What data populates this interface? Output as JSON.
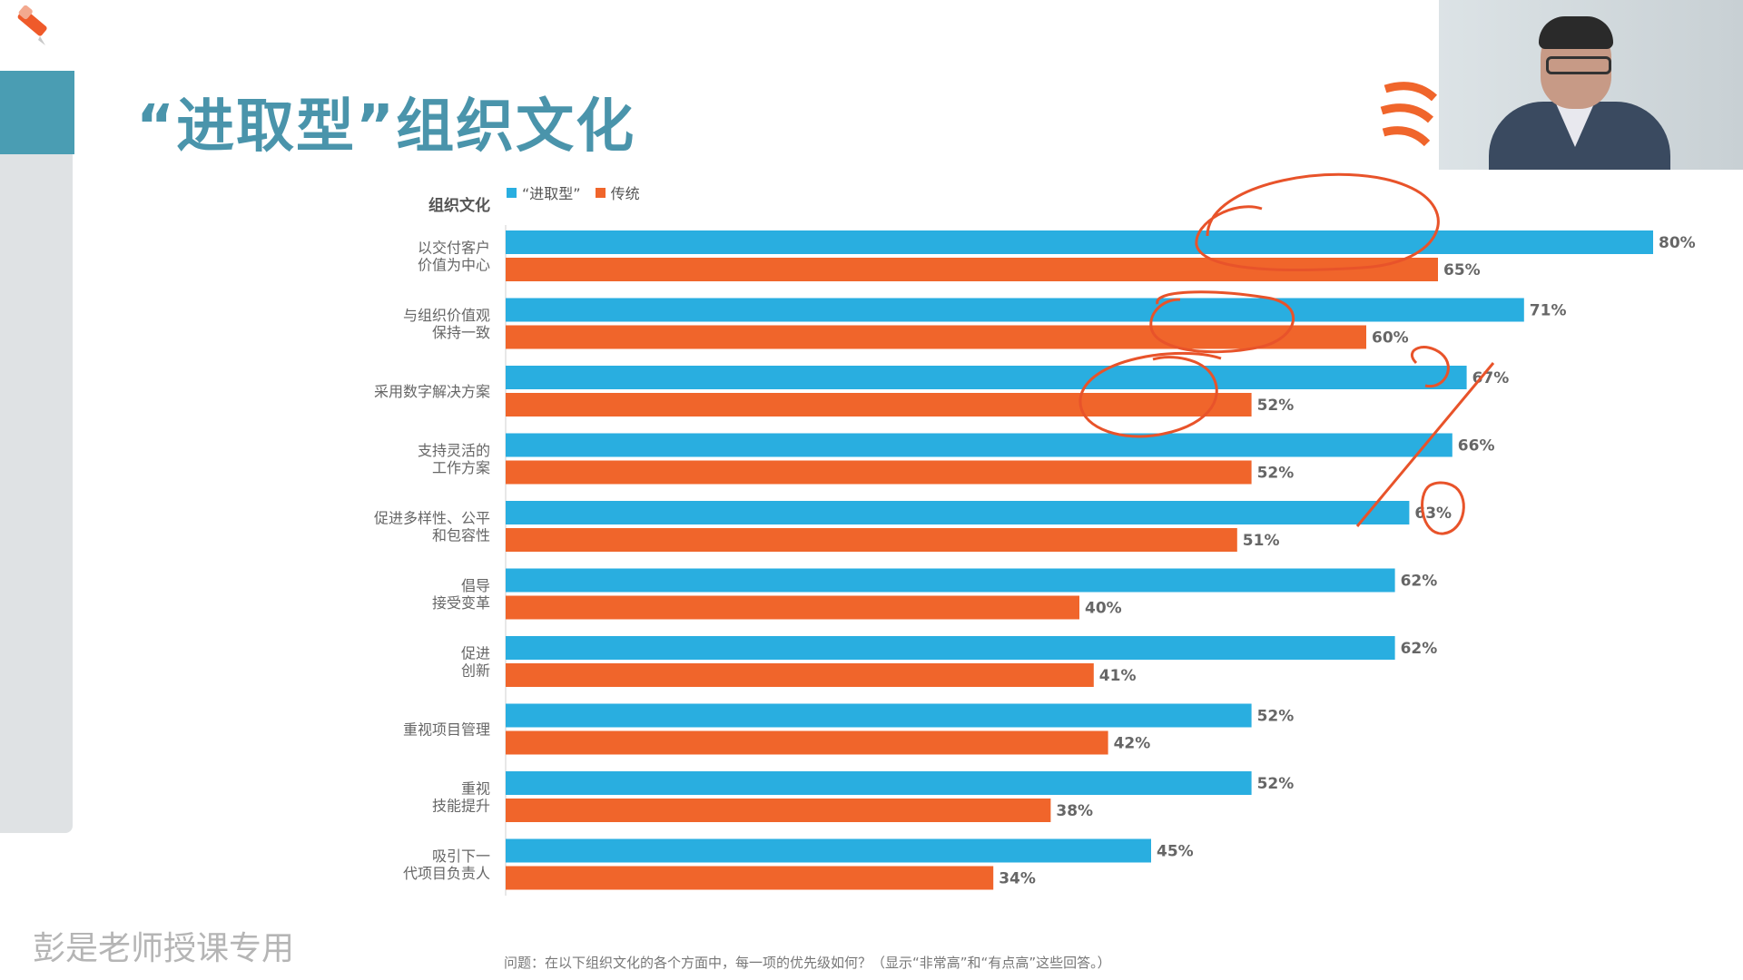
{
  "slide": {
    "title": "“进取型”组织文化",
    "footnote": "问题：在以下组织文化的各个方面中，每一项的优先级如何？（显示“非常高”和“有点高”这些回答。）",
    "watermark": "彭是老师授课专用"
  },
  "chart_data": {
    "type": "bar",
    "orientation": "horizontal",
    "category_axis_title": "组织文化",
    "categories": [
      "以交付客户\n价值为中心",
      "与组织价值观\n保持一致",
      "采用数字解决方案",
      "支持灵活的\n工作方案",
      "促进多样性、公平\n和包容性",
      "倡导\n接受变革",
      "促进\n创新",
      "重视项目管理",
      "重视\n技能提升",
      "吸引下一\n代项目负责人"
    ],
    "series": [
      {
        "name": "“进取型”",
        "color": "#29aee0",
        "values": [
          80,
          71,
          67,
          66,
          63,
          62,
          62,
          52,
          52,
          45
        ]
      },
      {
        "name": "传统",
        "color": "#f0652b",
        "values": [
          65,
          60,
          52,
          52,
          51,
          40,
          41,
          42,
          38,
          34
        ]
      }
    ],
    "value_suffix": "%",
    "xlim": [
      0,
      100
    ],
    "grid": false,
    "legend_position": "top-left"
  },
  "colors": {
    "title": "#4a94ab",
    "accent": "#4a9db3",
    "blue": "#29aee0",
    "orange": "#f0652b",
    "ink": "#e8532a"
  }
}
